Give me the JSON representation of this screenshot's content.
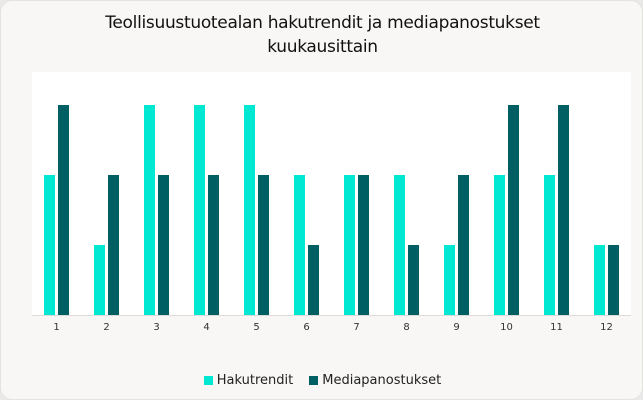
{
  "chart_data": {
    "type": "bar",
    "title": "Teollisuustuotealan hakutrendit ja mediapanostukset kuukausittain",
    "categories": [
      "1",
      "2",
      "3",
      "4",
      "5",
      "6",
      "7",
      "8",
      "9",
      "10",
      "11",
      "12"
    ],
    "series": [
      {
        "name": "Hakutrendit",
        "color": "#00e8d2",
        "values": [
          2,
          1,
          3,
          3,
          3,
          2,
          2,
          2,
          1,
          2,
          2,
          1
        ]
      },
      {
        "name": "Mediapanostukset",
        "color": "#005f63",
        "values": [
          3,
          2,
          2,
          2,
          2,
          1,
          2,
          1,
          2,
          3,
          3,
          1
        ]
      }
    ],
    "xlabel": "",
    "ylabel": "",
    "ylim": [
      0,
      3.5
    ],
    "grid": false,
    "legend_position": "bottom"
  },
  "header": {
    "title_line1": "Teollisuustuotealan hakutrendit ja mediapanostukset",
    "title_line2": "kuukausittain"
  },
  "legend": {
    "items": [
      {
        "label": "Hakutrendit",
        "color": "#00e8d2"
      },
      {
        "label": "Mediapanostukset",
        "color": "#005f63"
      }
    ]
  }
}
